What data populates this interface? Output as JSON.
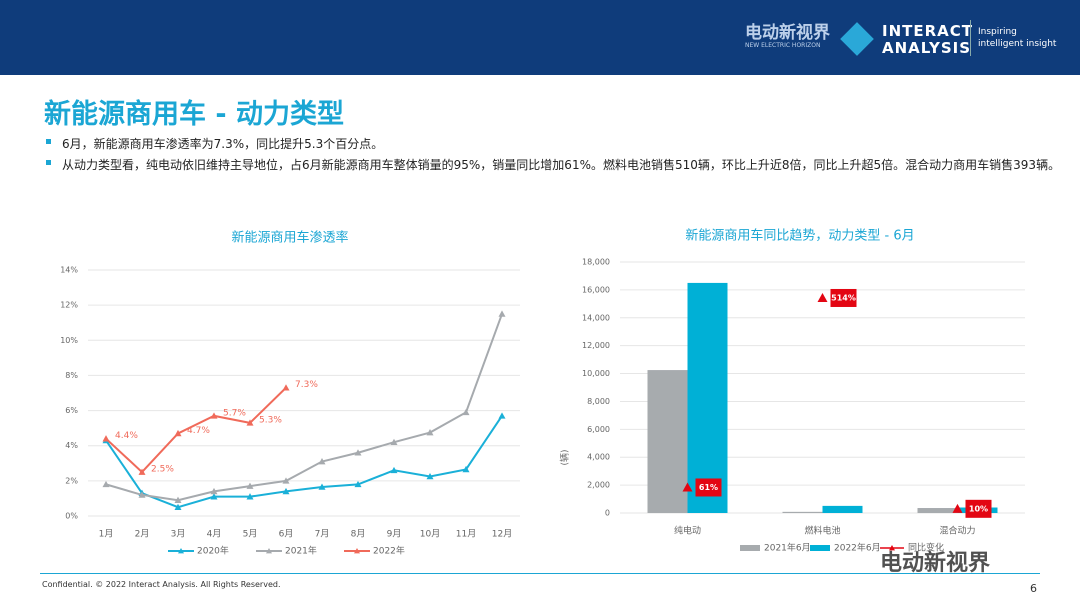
{
  "header": {
    "logo_cn": "电动新视界",
    "logo_en": "NEW ELECTRIC HORIZON",
    "brand_1": "INTERACT",
    "brand_2": "ANALYSIS",
    "tagline_1": "Inspiring",
    "tagline_2": "intelligent insight"
  },
  "title": "新能源商用车 - 动力类型",
  "bullets": [
    "6月，新能源商用车渗透率为7.3%，同比提升5.3个百分点。",
    "从动力类型看，纯电动依旧维持主导地位，占6月新能源商用车整体销量的95%，销量同比增加61%。燃料电池销售510辆，环比上升近8倍，同比上升超5倍。混合动力商用车销售393辆。"
  ],
  "footer": {
    "text": "Confidential. © 2022 Interact Analysis. All Rights Reserved.",
    "page": "6",
    "watermark": "电动新视界"
  },
  "chart_data": [
    {
      "type": "line",
      "title": "新能源商用车渗透率",
      "categories": [
        "1月",
        "2月",
        "3月",
        "4月",
        "5月",
        "6月",
        "7月",
        "8月",
        "9月",
        "10月",
        "11月",
        "12月"
      ],
      "series": [
        {
          "name": "2020年",
          "color": "#1ab0d8",
          "values": [
            4.3,
            1.3,
            0.5,
            1.1,
            1.1,
            1.4,
            1.65,
            1.8,
            2.6,
            2.25,
            2.65,
            5.7
          ]
        },
        {
          "name": "2021年",
          "color": "#a6aaae",
          "values": [
            1.8,
            1.2,
            0.9,
            1.4,
            1.7,
            2.0,
            3.1,
            3.6,
            4.2,
            4.75,
            5.9,
            11.5
          ]
        },
        {
          "name": "2022年",
          "color": "#f06a5a",
          "values": [
            4.4,
            2.5,
            4.7,
            5.7,
            5.3,
            7.3,
            null,
            null,
            null,
            null,
            null,
            null
          ],
          "value_labels": [
            "4.4%",
            "2.5%",
            "4.7%",
            "5.7%",
            "5.3%",
            "7.3%",
            null,
            null,
            null,
            null,
            null,
            null
          ]
        }
      ],
      "ylim": [
        0,
        14
      ],
      "yticks": [
        {
          "value": 0,
          "label": "0%"
        },
        {
          "value": 2,
          "label": "2%"
        },
        {
          "value": 4,
          "label": "4%"
        },
        {
          "value": 6,
          "label": "6%"
        },
        {
          "value": 8,
          "label": "8%"
        },
        {
          "value": 10,
          "label": "10%"
        },
        {
          "value": 12,
          "label": "12%"
        },
        {
          "value": 14,
          "label": "14%"
        }
      ],
      "legend": "bottom"
    },
    {
      "type": "bar",
      "title": "新能源商用车同比趋势，动力类型 - 6月",
      "ylabel": "(辆)",
      "categories": [
        "纯电动",
        "燃料电池",
        "混合动力"
      ],
      "series": [
        {
          "name": "2021年6月",
          "color": "#a7abae",
          "values": [
            10250,
            83,
            357
          ]
        },
        {
          "name": "2022年6月",
          "color": "#00b0d6",
          "values": [
            16500,
            510,
            393
          ]
        },
        {
          "name": "同比变化",
          "color": "#e30613",
          "axis": "y2",
          "values": [
            61,
            514,
            10
          ],
          "value_labels": [
            "61%",
            "514%",
            "10%"
          ]
        }
      ],
      "ylim": [
        0,
        18000
      ],
      "yticks": [
        0,
        {
          "value": 2000,
          "label": "2,000"
        },
        {
          "value": 4000,
          "label": "4,000"
        },
        {
          "value": 6000,
          "label": "6,000"
        },
        {
          "value": 8000,
          "label": "8,000"
        },
        {
          "value": 10000,
          "label": "10,000"
        },
        {
          "value": 12000,
          "label": "12,000"
        },
        {
          "value": 14000,
          "label": "14,000"
        },
        {
          "value": 16000,
          "label": "16,000"
        },
        {
          "value": 18000,
          "label": "18,000"
        }
      ],
      "y2lim": [
        0,
        600
      ],
      "legend": "bottom"
    }
  ]
}
